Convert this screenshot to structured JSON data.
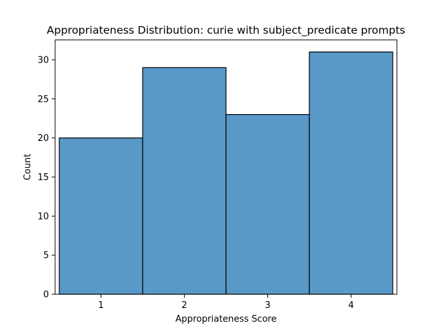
{
  "chart_data": {
    "type": "bar",
    "title": "Appropriateness Distribution: curie with subject_predicate prompts",
    "xlabel": "Appropriateness Score",
    "ylabel": "Count",
    "categories": [
      "1",
      "2",
      "3",
      "4"
    ],
    "x": [
      1,
      2,
      3,
      4
    ],
    "values": [
      20,
      29,
      23,
      31
    ],
    "xlim": [
      0.45,
      4.55
    ],
    "ylim": [
      0,
      32.55
    ],
    "yticks": [
      0,
      5,
      10,
      15,
      20,
      25,
      30
    ],
    "xticks": [
      1,
      2,
      3,
      4
    ],
    "bar_color": "#5899c8",
    "edge_color": "#000000",
    "grid": false,
    "legend": "none"
  }
}
